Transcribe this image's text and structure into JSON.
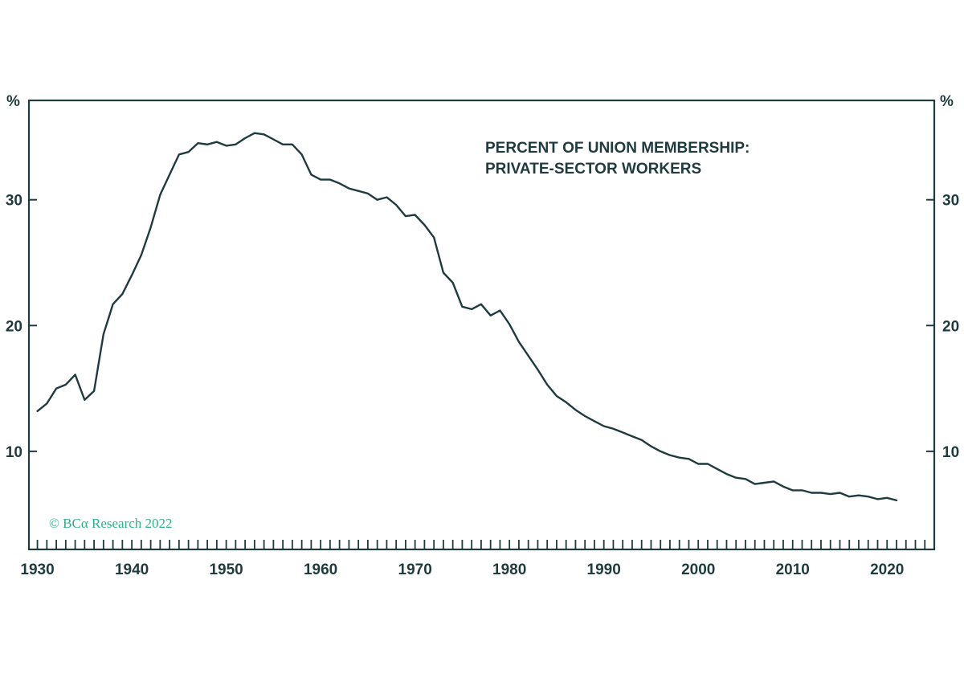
{
  "colors": {
    "ink": "#1f3b3d",
    "credit": "#2bb38a",
    "background": "#ffffff"
  },
  "left_unit": "%",
  "right_unit": "%",
  "credit": "© BCα Research 2022",
  "chart_data": {
    "type": "line",
    "title": "PERCENT OF UNION MEMBERSHIP:",
    "subtitle": "PRIVATE-SECTOR WORKERS",
    "xlabel": "",
    "ylabel": "%",
    "xlim": [
      1929.1,
      2025.0
    ],
    "ylim": [
      2.2,
      37.9
    ],
    "grid": false,
    "x_ticks": [
      1930,
      1940,
      1950,
      1960,
      1970,
      1980,
      1990,
      2000,
      2010,
      2020
    ],
    "y_ticks": [
      10,
      20,
      30
    ],
    "x_tick_labels": [
      "1930",
      "1940",
      "1950",
      "1960",
      "1970",
      "1980",
      "1990",
      "2000",
      "2010",
      "2020"
    ],
    "y_tick_labels": [
      "10",
      "20",
      "30"
    ],
    "series": [
      {
        "x": [
          1930,
          1931,
          1932,
          1933,
          1934,
          1935,
          1936,
          1937,
          1938,
          1939,
          1940,
          1941,
          1942,
          1943,
          1944,
          1945,
          1946,
          1947,
          1948,
          1949,
          1950,
          1951,
          1952,
          1953,
          1954,
          1955,
          1956,
          1957,
          1958,
          1959,
          1960,
          1961,
          1962,
          1963,
          1964,
          1965,
          1966,
          1967,
          1968,
          1969,
          1970,
          1971,
          1972,
          1973,
          1974,
          1975,
          1976,
          1977,
          1978,
          1979,
          1980,
          1981,
          1982,
          1983,
          1984,
          1985,
          1986,
          1987,
          1988,
          1989,
          1990,
          1991,
          1992,
          1993,
          1994,
          1995,
          1996,
          1997,
          1998,
          1999,
          2000,
          2001,
          2002,
          2003,
          2004,
          2005,
          2006,
          2007,
          2008,
          2009,
          2010,
          2011,
          2012,
          2013,
          2014,
          2015,
          2016,
          2017,
          2018,
          2019,
          2020,
          2021
        ],
        "values": [
          13.2,
          13.8,
          15.0,
          15.3,
          16.1,
          14.1,
          14.8,
          19.3,
          21.7,
          22.5,
          24.0,
          25.6,
          27.8,
          30.4,
          32.0,
          33.6,
          33.8,
          34.5,
          34.4,
          34.6,
          34.3,
          34.4,
          34.9,
          35.3,
          35.2,
          34.8,
          34.4,
          34.4,
          33.6,
          32.0,
          31.6,
          31.6,
          31.3,
          30.9,
          30.7,
          30.5,
          30.0,
          30.2,
          29.6,
          28.7,
          28.8,
          28.0,
          27.0,
          24.2,
          23.4,
          21.5,
          21.3,
          21.7,
          20.8,
          21.2,
          20.1,
          18.7,
          17.6,
          16.5,
          15.3,
          14.4,
          13.9,
          13.3,
          12.8,
          12.4,
          12.0,
          11.8,
          11.5,
          11.2,
          10.9,
          10.4,
          10.0,
          9.7,
          9.5,
          9.4,
          9.0,
          9.0,
          8.6,
          8.2,
          7.9,
          7.8,
          7.4,
          7.5,
          7.6,
          7.2,
          6.9,
          6.9,
          6.7,
          6.7,
          6.6,
          6.7,
          6.4,
          6.5,
          6.4,
          6.2,
          6.3,
          6.1
        ]
      }
    ]
  }
}
